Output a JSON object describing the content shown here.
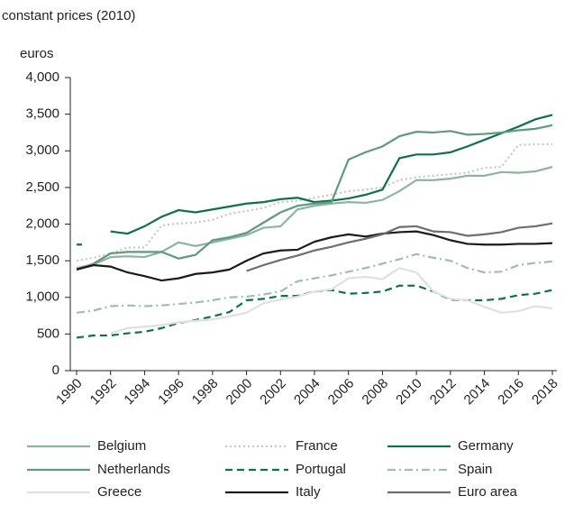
{
  "chart_data": {
    "type": "line",
    "subtitle": "constant prices (2010)",
    "ylabel": "euros",
    "x": [
      1990,
      1991,
      1992,
      1993,
      1994,
      1995,
      1996,
      1997,
      1998,
      1999,
      2000,
      2001,
      2002,
      2003,
      2004,
      2005,
      2006,
      2007,
      2008,
      2009,
      2010,
      2011,
      2012,
      2013,
      2014,
      2015,
      2016,
      2017,
      2018
    ],
    "xlim": [
      1990,
      2018
    ],
    "xticks": [
      1990,
      1992,
      1994,
      1996,
      1998,
      2000,
      2002,
      2004,
      2006,
      2008,
      2010,
      2012,
      2014,
      2016,
      2018
    ],
    "ylim": [
      0,
      4000
    ],
    "yticks": [
      0,
      {
        "value": 500,
        "label": "500"
      },
      {
        "value": 1000,
        "label": "1,000"
      },
      {
        "value": 1500,
        "label": "1,500"
      },
      {
        "value": 2000,
        "label": "2,000"
      },
      {
        "value": 2500,
        "label": "2,500"
      },
      {
        "value": 3000,
        "label": "3,000"
      },
      {
        "value": 3500,
        "label": "3,500"
      },
      {
        "value": 4000,
        "label": "4,000"
      }
    ],
    "series": [
      {
        "name": "Belgium",
        "color": "#8db49f",
        "dash": "solid",
        "values": [
          1400,
          1450,
          1550,
          1560,
          1550,
          1620,
          1750,
          1700,
          1750,
          1800,
          1850,
          1950,
          1970,
          2200,
          2250,
          2280,
          2300,
          2290,
          2330,
          2450,
          2600,
          2600,
          2620,
          2660,
          2660,
          2710,
          2700,
          2720,
          2780
        ]
      },
      {
        "name": "France",
        "color": "#c6c6c6",
        "dash": "dotted",
        "values": [
          1500,
          1540,
          1600,
          1680,
          1680,
          1980,
          2010,
          2020,
          2060,
          2140,
          2180,
          2220,
          2300,
          2320,
          2360,
          2400,
          2450,
          2470,
          2500,
          2600,
          2640,
          2660,
          2680,
          2700,
          2770,
          2780,
          3080,
          3090,
          3090
        ]
      },
      {
        "name": "Germany",
        "color": "#0e7050",
        "dash": "solid",
        "values": [
          1720,
          null,
          1900,
          1870,
          1970,
          2100,
          2190,
          2160,
          2200,
          2240,
          2280,
          2300,
          2340,
          2360,
          2300,
          2320,
          2350,
          2400,
          2470,
          2900,
          2950,
          2950,
          2980,
          3060,
          3150,
          3240,
          3330,
          3430,
          3490
        ]
      },
      {
        "name": "Netherlands",
        "color": "#5e9a7e",
        "dash": "solid",
        "values": [
          1380,
          1460,
          1600,
          1620,
          1620,
          1620,
          1530,
          1580,
          1780,
          1820,
          1880,
          2020,
          2160,
          2250,
          2280,
          2300,
          2880,
          2980,
          3060,
          3200,
          3260,
          3250,
          3270,
          3220,
          3230,
          3250,
          3280,
          3300,
          3350
        ]
      },
      {
        "name": "Portugal",
        "color": "#0e7050",
        "dash": "dashed",
        "values": [
          450,
          480,
          480,
          510,
          530,
          580,
          650,
          690,
          740,
          800,
          960,
          980,
          1020,
          1020,
          1080,
          1100,
          1050,
          1060,
          1080,
          1160,
          1160,
          1080,
          970,
          960,
          960,
          980,
          1030,
          1050,
          1100
        ]
      },
      {
        "name": "Spain",
        "color": "#9cbfae",
        "dash": "dashdot",
        "values": [
          790,
          820,
          880,
          890,
          880,
          890,
          910,
          930,
          960,
          1000,
          1010,
          1040,
          1080,
          1220,
          1260,
          1300,
          1350,
          1400,
          1460,
          1520,
          1590,
          1540,
          1500,
          1400,
          1340,
          1350,
          1440,
          1470,
          1490
        ]
      },
      {
        "name": "Greece",
        "color": "#e0e0e0",
        "dash": "solid",
        "values": [
          null,
          null,
          510,
          580,
          600,
          620,
          660,
          680,
          700,
          740,
          790,
          920,
          970,
          1010,
          1080,
          1110,
          1260,
          1280,
          1250,
          1400,
          1340,
          1080,
          980,
          960,
          870,
          790,
          810,
          880,
          850
        ]
      },
      {
        "name": "Italy",
        "color": "#1a1a1a",
        "dash": "solid",
        "values": [
          1380,
          1440,
          1420,
          1340,
          1290,
          1230,
          1260,
          1320,
          1340,
          1380,
          1500,
          1600,
          1640,
          1650,
          1760,
          1820,
          1860,
          1830,
          1870,
          1890,
          1900,
          1850,
          1780,
          1730,
          1720,
          1720,
          1730,
          1730,
          1740
        ]
      },
      {
        "name": "Euro area",
        "color": "#6e6e6e",
        "dash": "solid",
        "values": [
          null,
          null,
          null,
          null,
          null,
          null,
          null,
          null,
          null,
          null,
          1360,
          1440,
          1510,
          1570,
          1640,
          1690,
          1750,
          1800,
          1860,
          1960,
          1970,
          1900,
          1890,
          1840,
          1860,
          1890,
          1950,
          1970,
          2010
        ]
      }
    ]
  }
}
